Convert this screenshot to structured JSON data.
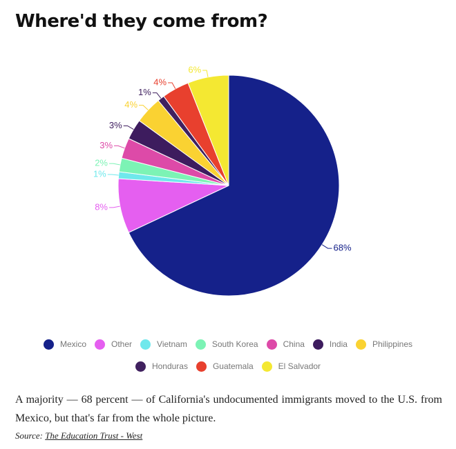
{
  "chart_data": {
    "type": "pie",
    "title": "Where'd they come from?",
    "categories": [
      "Mexico",
      "Other",
      "Vietnam",
      "South Korea",
      "China",
      "India",
      "Philippines",
      "Honduras",
      "Guatemala",
      "El Salvador"
    ],
    "values": [
      68,
      8,
      1,
      2,
      3,
      3,
      4,
      1,
      4,
      6
    ],
    "value_labels": [
      "68%",
      "8%",
      "1%",
      "2%",
      "3%",
      "3%",
      "4%",
      "1%",
      "4%",
      "6%"
    ],
    "colors": [
      "#15218a",
      "#e55ff0",
      "#6fe8ec",
      "#7cf3b5",
      "#dd4aa8",
      "#3d1c5e",
      "#fad232",
      "#40215f",
      "#e8402e",
      "#f4e832"
    ],
    "caption": "A majority — 68 percent — of California's undocumented immigrants moved to the U.S. from Mexico, but that's far from the whole picture.",
    "source_prefix": "Source:",
    "source": "The Education Trust - West"
  }
}
